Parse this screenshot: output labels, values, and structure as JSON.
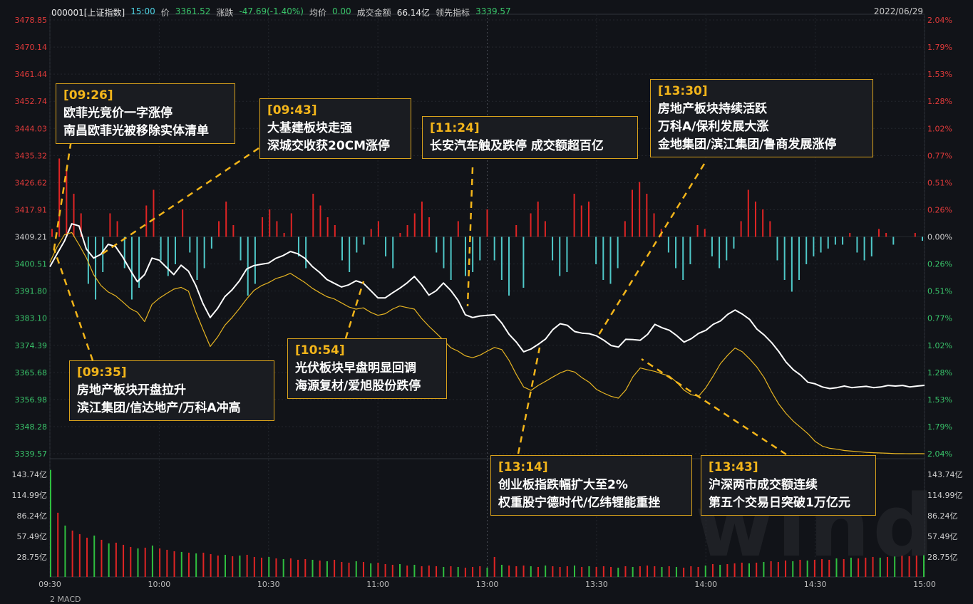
{
  "header": {
    "code": "000001[上证指数]",
    "time": "15:00",
    "price_label": "价",
    "price": "3361.52",
    "change_label": "涨跌",
    "change": "-47.69(-1.40%)",
    "avg_label": "均价",
    "avg": "0.00",
    "turnover_label": "成交金额",
    "turnover": "66.14亿",
    "lead_label": "领先指标",
    "lead": "3339.57",
    "date": "2022/06/29"
  },
  "footer_tab": "2 MACD",
  "watermark": "wind",
  "colors": {
    "up": "#e02424",
    "down": "#4fc8c8",
    "price_line": "#ffffff",
    "lead_line": "#e6b422",
    "accent": "#f3b51a",
    "bg": "#111318"
  },
  "chart_data": {
    "type": "line",
    "prev_close": 3409.21,
    "y_ticks_left": [
      "3478.85",
      "3470.14",
      "3461.44",
      "3452.74",
      "3444.03",
      "3435.32",
      "3426.62",
      "3417.91",
      "3409.21",
      "3400.51",
      "3391.80",
      "3383.10",
      "3374.39",
      "3365.68",
      "3356.98",
      "3348.28",
      "3339.57"
    ],
    "y_ticks_right": [
      "2.04%",
      "1.79%",
      "1.53%",
      "1.28%",
      "1.02%",
      "0.77%",
      "0.51%",
      "0.26%",
      "0.00%",
      "0.26%",
      "0.51%",
      "0.77%",
      "1.02%",
      "1.28%",
      "1.53%",
      "1.79%",
      "2.04%"
    ],
    "x_ticks": [
      "09:30",
      "10:00",
      "10:30",
      "11:00",
      "13:00",
      "13:30",
      "14:00",
      "14:30",
      "15:00"
    ],
    "volume_ticks": [
      "143.74亿",
      "114.99亿",
      "86.24亿",
      "57.49亿",
      "28.75亿"
    ],
    "ylim": [
      3339.57,
      3478.85
    ],
    "volume_max": 143.74,
    "series": [
      {
        "x": [
          "09:30",
          "09:32",
          "09:34",
          "09:36",
          "09:38",
          "09:40",
          "09:42",
          "09:44",
          "09:46",
          "09:48",
          "09:50",
          "09:52",
          "09:54",
          "09:56",
          "09:58",
          "10:00",
          "10:02",
          "10:04",
          "10:06",
          "10:08",
          "10:10",
          "10:12",
          "10:14",
          "10:16",
          "10:18",
          "10:20",
          "10:22",
          "10:24",
          "10:26",
          "10:28",
          "10:30",
          "10:32",
          "10:34",
          "10:36",
          "10:38",
          "10:40",
          "10:42",
          "10:44",
          "10:46",
          "10:48",
          "10:50",
          "10:52",
          "10:54",
          "10:56",
          "10:58",
          "11:00",
          "11:02",
          "11:04",
          "11:06",
          "11:08",
          "11:10",
          "11:12",
          "11:14",
          "11:16",
          "11:18",
          "11:20",
          "11:22",
          "11:24",
          "11:26",
          "11:28",
          "11:30",
          "13:02",
          "13:04",
          "13:06",
          "13:08",
          "13:10",
          "13:12",
          "13:14",
          "13:16",
          "13:18",
          "13:20",
          "13:22",
          "13:24",
          "13:26",
          "13:28",
          "13:30",
          "13:32",
          "13:34",
          "13:36",
          "13:38",
          "13:40",
          "13:42",
          "13:44",
          "13:46",
          "13:48",
          "13:50",
          "13:52",
          "13:54",
          "13:56",
          "13:58",
          "14:00",
          "14:02",
          "14:04",
          "14:06",
          "14:08",
          "14:10",
          "14:12",
          "14:14",
          "14:16",
          "14:18",
          "14:20",
          "14:22",
          "14:24",
          "14:26",
          "14:28",
          "14:30",
          "14:32",
          "14:34",
          "14:36",
          "14:38",
          "14:40",
          "14:42",
          "14:44",
          "14:46",
          "14:48",
          "14:50",
          "14:52",
          "14:54",
          "14:56",
          "14:58",
          "15:00"
        ],
        "values": [
          3399.6,
          3403.8,
          3407.9,
          3413.4,
          3412.7,
          3405.3,
          3402.4,
          3403.6,
          3406.8,
          3406.1,
          3402.7,
          3398.6,
          3394.8,
          3397.1,
          3402.4,
          3401.7,
          3399.4,
          3397.1,
          3400.1,
          3398.2,
          3393.7,
          3387.8,
          3383.3,
          3386.2,
          3390.0,
          3392.2,
          3395.1,
          3398.9,
          3400.0,
          3400.4,
          3400.8,
          3402.3,
          3403.2,
          3404.5,
          3403.8,
          3402.3,
          3399.7,
          3397.8,
          3395.5,
          3394.3,
          3393.1,
          3393.8,
          3395.1,
          3394.3,
          3392.0,
          3389.6,
          3389.6,
          3391.2,
          3392.7,
          3394.4,
          3396.5,
          3393.8,
          3390.5,
          3391.9,
          3394.4,
          3392.0,
          3388.8,
          3384.2,
          3383.3,
          3383.8,
          3384.0,
          3384.2,
          3381.5,
          3377.9,
          3375.4,
          3372.3,
          3373.2,
          3374.7,
          3376.4,
          3379.4,
          3381.3,
          3380.8,
          3378.8,
          3378.3,
          3378.1,
          3377.4,
          3376.0,
          3374.3,
          3373.8,
          3376.3,
          3376.2,
          3376.0,
          3377.9,
          3381.1,
          3380.0,
          3379.2,
          3377.5,
          3375.4,
          3376.5,
          3378.2,
          3379.2,
          3381.1,
          3382.2,
          3384.3,
          3385.7,
          3384.4,
          3382.7,
          3379.6,
          3377.7,
          3375.3,
          3372.4,
          3369.0,
          3366.5,
          3364.8,
          3362.5,
          3362.0,
          3361.0,
          3360.5,
          3360.8,
          3361.3,
          3360.8,
          3361.0,
          3361.2,
          3360.8,
          3361.0,
          3361.5,
          3361.3,
          3361.5,
          3361.0,
          3361.3,
          3361.52
        ],
        "color": "#ffffff"
      },
      {
        "x": [
          "09:30",
          "09:32",
          "09:34",
          "09:36",
          "09:38",
          "09:40",
          "09:42",
          "09:44",
          "09:46",
          "09:48",
          "09:50",
          "09:52",
          "09:54",
          "09:56",
          "09:58",
          "10:00",
          "10:02",
          "10:04",
          "10:06",
          "10:08",
          "10:10",
          "10:12",
          "10:14",
          "10:16",
          "10:18",
          "10:20",
          "10:22",
          "10:24",
          "10:26",
          "10:28",
          "10:30",
          "10:32",
          "10:34",
          "10:36",
          "10:38",
          "10:40",
          "10:42",
          "10:44",
          "10:46",
          "10:48",
          "10:50",
          "10:52",
          "10:54",
          "10:56",
          "10:58",
          "11:00",
          "11:02",
          "11:04",
          "11:06",
          "11:08",
          "11:10",
          "11:12",
          "11:14",
          "11:16",
          "11:18",
          "11:20",
          "11:22",
          "11:24",
          "11:26",
          "11:28",
          "11:30",
          "13:02",
          "13:04",
          "13:06",
          "13:08",
          "13:10",
          "13:12",
          "13:14",
          "13:16",
          "13:18",
          "13:20",
          "13:22",
          "13:24",
          "13:26",
          "13:28",
          "13:30",
          "13:32",
          "13:34",
          "13:36",
          "13:38",
          "13:40",
          "13:42",
          "13:44",
          "13:46",
          "13:48",
          "13:50",
          "13:52",
          "13:54",
          "13:56",
          "13:58",
          "14:00",
          "14:02",
          "14:04",
          "14:06",
          "14:08",
          "14:10",
          "14:12",
          "14:14",
          "14:16",
          "14:18",
          "14:20",
          "14:22",
          "14:24",
          "14:26",
          "14:28",
          "14:30",
          "14:32",
          "14:34",
          "14:36",
          "14:38",
          "14:40",
          "14:42",
          "14:44",
          "14:46",
          "14:48",
          "14:50",
          "14:52",
          "14:54",
          "14:56",
          "14:58",
          "15:00"
        ],
        "values": [
          3401.0,
          3406.0,
          3409.9,
          3410.6,
          3406.7,
          3402.5,
          3397.1,
          3393.6,
          3391.5,
          3390.3,
          3388.3,
          3386.2,
          3385.0,
          3382.0,
          3387.5,
          3389.5,
          3391.0,
          3392.4,
          3393.0,
          3391.8,
          3385.2,
          3379.5,
          3374.0,
          3377.0,
          3380.8,
          3383.3,
          3386.2,
          3389.3,
          3392.0,
          3393.5,
          3394.5,
          3395.8,
          3396.5,
          3397.5,
          3396.0,
          3394.5,
          3392.7,
          3391.3,
          3390.0,
          3389.3,
          3388.0,
          3386.7,
          3386.0,
          3386.4,
          3385.0,
          3384.0,
          3384.5,
          3386.0,
          3387.0,
          3386.5,
          3386.0,
          3383.0,
          3380.5,
          3378.3,
          3376.0,
          3373.6,
          3372.5,
          3371.0,
          3370.4,
          3371.2,
          3372.5,
          3373.7,
          3373.0,
          3369.5,
          3365.0,
          3361.0,
          3359.9,
          3361.5,
          3362.8,
          3364.2,
          3365.5,
          3366.4,
          3365.8,
          3364.0,
          3362.5,
          3360.2,
          3359.0,
          3358.0,
          3357.4,
          3360.0,
          3364.3,
          3367.1,
          3366.5,
          3366.0,
          3365.2,
          3364.5,
          3362.5,
          3360.0,
          3358.5,
          3358.0,
          3360.8,
          3364.5,
          3368.5,
          3371.2,
          3373.5,
          3372.3,
          3370.0,
          3367.4,
          3364.0,
          3359.5,
          3355.5,
          3352.5,
          3350.0,
          3348.0,
          3346.0,
          3343.5,
          3342.0,
          3341.3,
          3341.0,
          3340.6,
          3340.4,
          3340.2,
          3340.0,
          3339.9,
          3339.8,
          3339.7,
          3339.6,
          3339.6,
          3339.57,
          3339.6,
          3339.57
        ],
        "color": "#e6b422"
      }
    ],
    "lead_index_bars": [
      0.1,
      1.0,
      0.85,
      0.55,
      0.3,
      -0.6,
      -0.8,
      -0.45,
      0.3,
      0.2,
      -0.4,
      -0.8,
      -0.65,
      0.4,
      0.6,
      -0.3,
      -0.5,
      -0.35,
      0.35,
      -0.2,
      -0.55,
      -0.4,
      -0.15,
      0.2,
      0.45,
      0.15,
      -0.3,
      -0.75,
      -0.6,
      0.25,
      0.35,
      0.2,
      0.05,
      0.3,
      -0.25,
      -0.4,
      0.55,
      0.4,
      0.25,
      0.15,
      -0.3,
      -0.45,
      -0.2,
      -0.1,
      0.1,
      0.2,
      -0.25,
      -0.4,
      0.05,
      0.15,
      0.3,
      0.45,
      0.25,
      -0.2,
      -0.4,
      -0.55,
      0.2,
      -0.5,
      -0.45,
      -0.3,
      0.35,
      -0.3,
      -0.55,
      -0.75,
      0.15,
      -0.65,
      0.3,
      0.45,
      0.2,
      -0.3,
      -0.5,
      -0.45,
      0.55,
      0.4,
      0.45,
      -0.35,
      -0.55,
      -0.6,
      -0.4,
      0.2,
      0.6,
      0.7,
      0.55,
      0.3,
      0.1,
      -0.2,
      -0.4,
      -0.55,
      -0.35,
      0.15,
      0.1,
      -0.25,
      -0.4,
      -0.3,
      -0.15,
      0.2,
      0.6,
      0.45,
      0.35,
      0.2,
      -0.3,
      -0.55,
      -0.7,
      -0.55,
      -0.35,
      -0.25,
      -0.2,
      -0.15,
      -0.1,
      -0.1,
      0.05,
      -0.2,
      -0.3,
      -0.25,
      0.1,
      0.05,
      -0.1,
      0.0,
      0.0,
      0.05,
      -0.05
    ],
    "volume_values": [
      150.0,
      90.0,
      72.0,
      65.0,
      60.0,
      55.0,
      58.0,
      52.0,
      47.0,
      48.0,
      45.0,
      42.0,
      40.0,
      41.0,
      44.0,
      40.0,
      38.0,
      36.0,
      35.0,
      34.0,
      33.0,
      34.0,
      32.0,
      30.0,
      31.0,
      29.0,
      30.0,
      31.0,
      28.0,
      27.0,
      28.0,
      26.0,
      25.0,
      26.0,
      24.0,
      25.0,
      24.0,
      23.0,
      22.0,
      24.0,
      21.0,
      20.0,
      22.0,
      21.0,
      19.0,
      20.0,
      18.0,
      17.0,
      18.0,
      16.0,
      17.0,
      15.0,
      16.0,
      15.0,
      14.0,
      15.0,
      14.0,
      13.0,
      14.0,
      15.0,
      13.0,
      28.0,
      17.0,
      16.0,
      15.0,
      16.0,
      15.0,
      14.0,
      16.0,
      15.0,
      14.0,
      15.0,
      16.0,
      14.0,
      15.0,
      14.0,
      15.0,
      14.0,
      13.0,
      15.0,
      14.0,
      15.0,
      16.0,
      15.0,
      14.0,
      15.0,
      14.0,
      13.0,
      15.0,
      14.0,
      16.0,
      18.0,
      17.0,
      18.0,
      19.0,
      20.0,
      19.0,
      20.0,
      21.0,
      22.0,
      21.0,
      23.0,
      22.0,
      24.0,
      23.0,
      24.0,
      25.0,
      24.0,
      26.0,
      25.0,
      27.0,
      26.0,
      27.0,
      28.0,
      27.0,
      28.0,
      29.0,
      30.0,
      29.0,
      30.0,
      31.0
    ]
  },
  "annotations": [
    {
      "time": "[09:26]",
      "line1": "欧菲光竞价一字涨停",
      "line2": "南昌欧菲光被移除实体清单"
    },
    {
      "time": "[09:35]",
      "line1": "房地产板块开盘拉升",
      "line2": "滨江集团/信达地产/万科A冲高"
    },
    {
      "time": "[09:43]",
      "line1": "大基建板块走强",
      "line2": "深城交收获20CM涨停"
    },
    {
      "time": "[10:54]",
      "line1": "光伏板块早盘明显回调",
      "line2": "海源复材/爱旭股份跌停"
    },
    {
      "time": "[11:24]",
      "line1": "长安汽车触及跌停 成交额超百亿",
      "line2": ""
    },
    {
      "time": "[13:14]",
      "line1": "创业板指跌幅扩大至2%",
      "line2": "权重股宁德时代/亿纬锂能重挫"
    },
    {
      "time": "[13:30]",
      "line1": "房地产板块持续活跃",
      "line2": "万科A/保利发展大涨",
      "line3": "金地集团/滨江集团/鲁商发展涨停"
    },
    {
      "time": "[13:43]",
      "line1": "沪深两市成交额连续",
      "line2": "第五个交易日突破1万亿元"
    }
  ]
}
